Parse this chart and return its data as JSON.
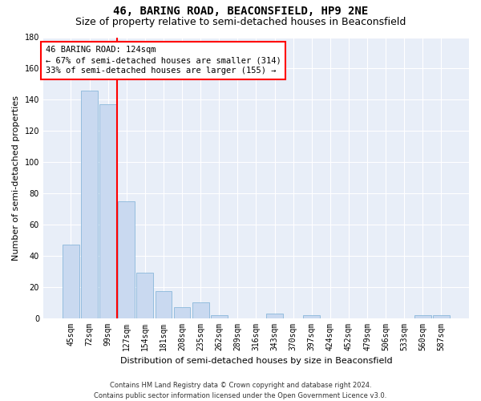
{
  "title1": "46, BARING ROAD, BEACONSFIELD, HP9 2NE",
  "title2": "Size of property relative to semi-detached houses in Beaconsfield",
  "xlabel": "Distribution of semi-detached houses by size in Beaconsfield",
  "ylabel": "Number of semi-detached properties",
  "categories": [
    "45sqm",
    "72sqm",
    "99sqm",
    "127sqm",
    "154sqm",
    "181sqm",
    "208sqm",
    "235sqm",
    "262sqm",
    "289sqm",
    "316sqm",
    "343sqm",
    "370sqm",
    "397sqm",
    "424sqm",
    "452sqm",
    "479sqm",
    "506sqm",
    "533sqm",
    "560sqm",
    "587sqm"
  ],
  "values": [
    47,
    146,
    137,
    75,
    29,
    17,
    7,
    10,
    2,
    0,
    0,
    3,
    0,
    2,
    0,
    0,
    0,
    0,
    0,
    2,
    2
  ],
  "bar_color": "#c9d9f0",
  "bar_edge_color": "#7aaed6",
  "annotation_text_line1": "46 BARING ROAD: 124sqm",
  "annotation_text_line2": "← 67% of semi-detached houses are smaller (314)",
  "annotation_text_line3": "33% of semi-detached houses are larger (155) →",
  "ylim": [
    0,
    180
  ],
  "yticks": [
    0,
    20,
    40,
    60,
    80,
    100,
    120,
    140,
    160,
    180
  ],
  "footer_line1": "Contains HM Land Registry data © Crown copyright and database right 2024.",
  "footer_line2": "Contains public sector information licensed under the Open Government Licence v3.0.",
  "bg_color": "#e8eef8",
  "grid_color": "#ffffff",
  "fig_bg_color": "#ffffff",
  "red_line_x": 2.5,
  "title1_fontsize": 10,
  "title2_fontsize": 9,
  "axis_label_fontsize": 8,
  "tick_fontsize": 7,
  "annot_fontsize": 7.5,
  "footer_fontsize": 6
}
